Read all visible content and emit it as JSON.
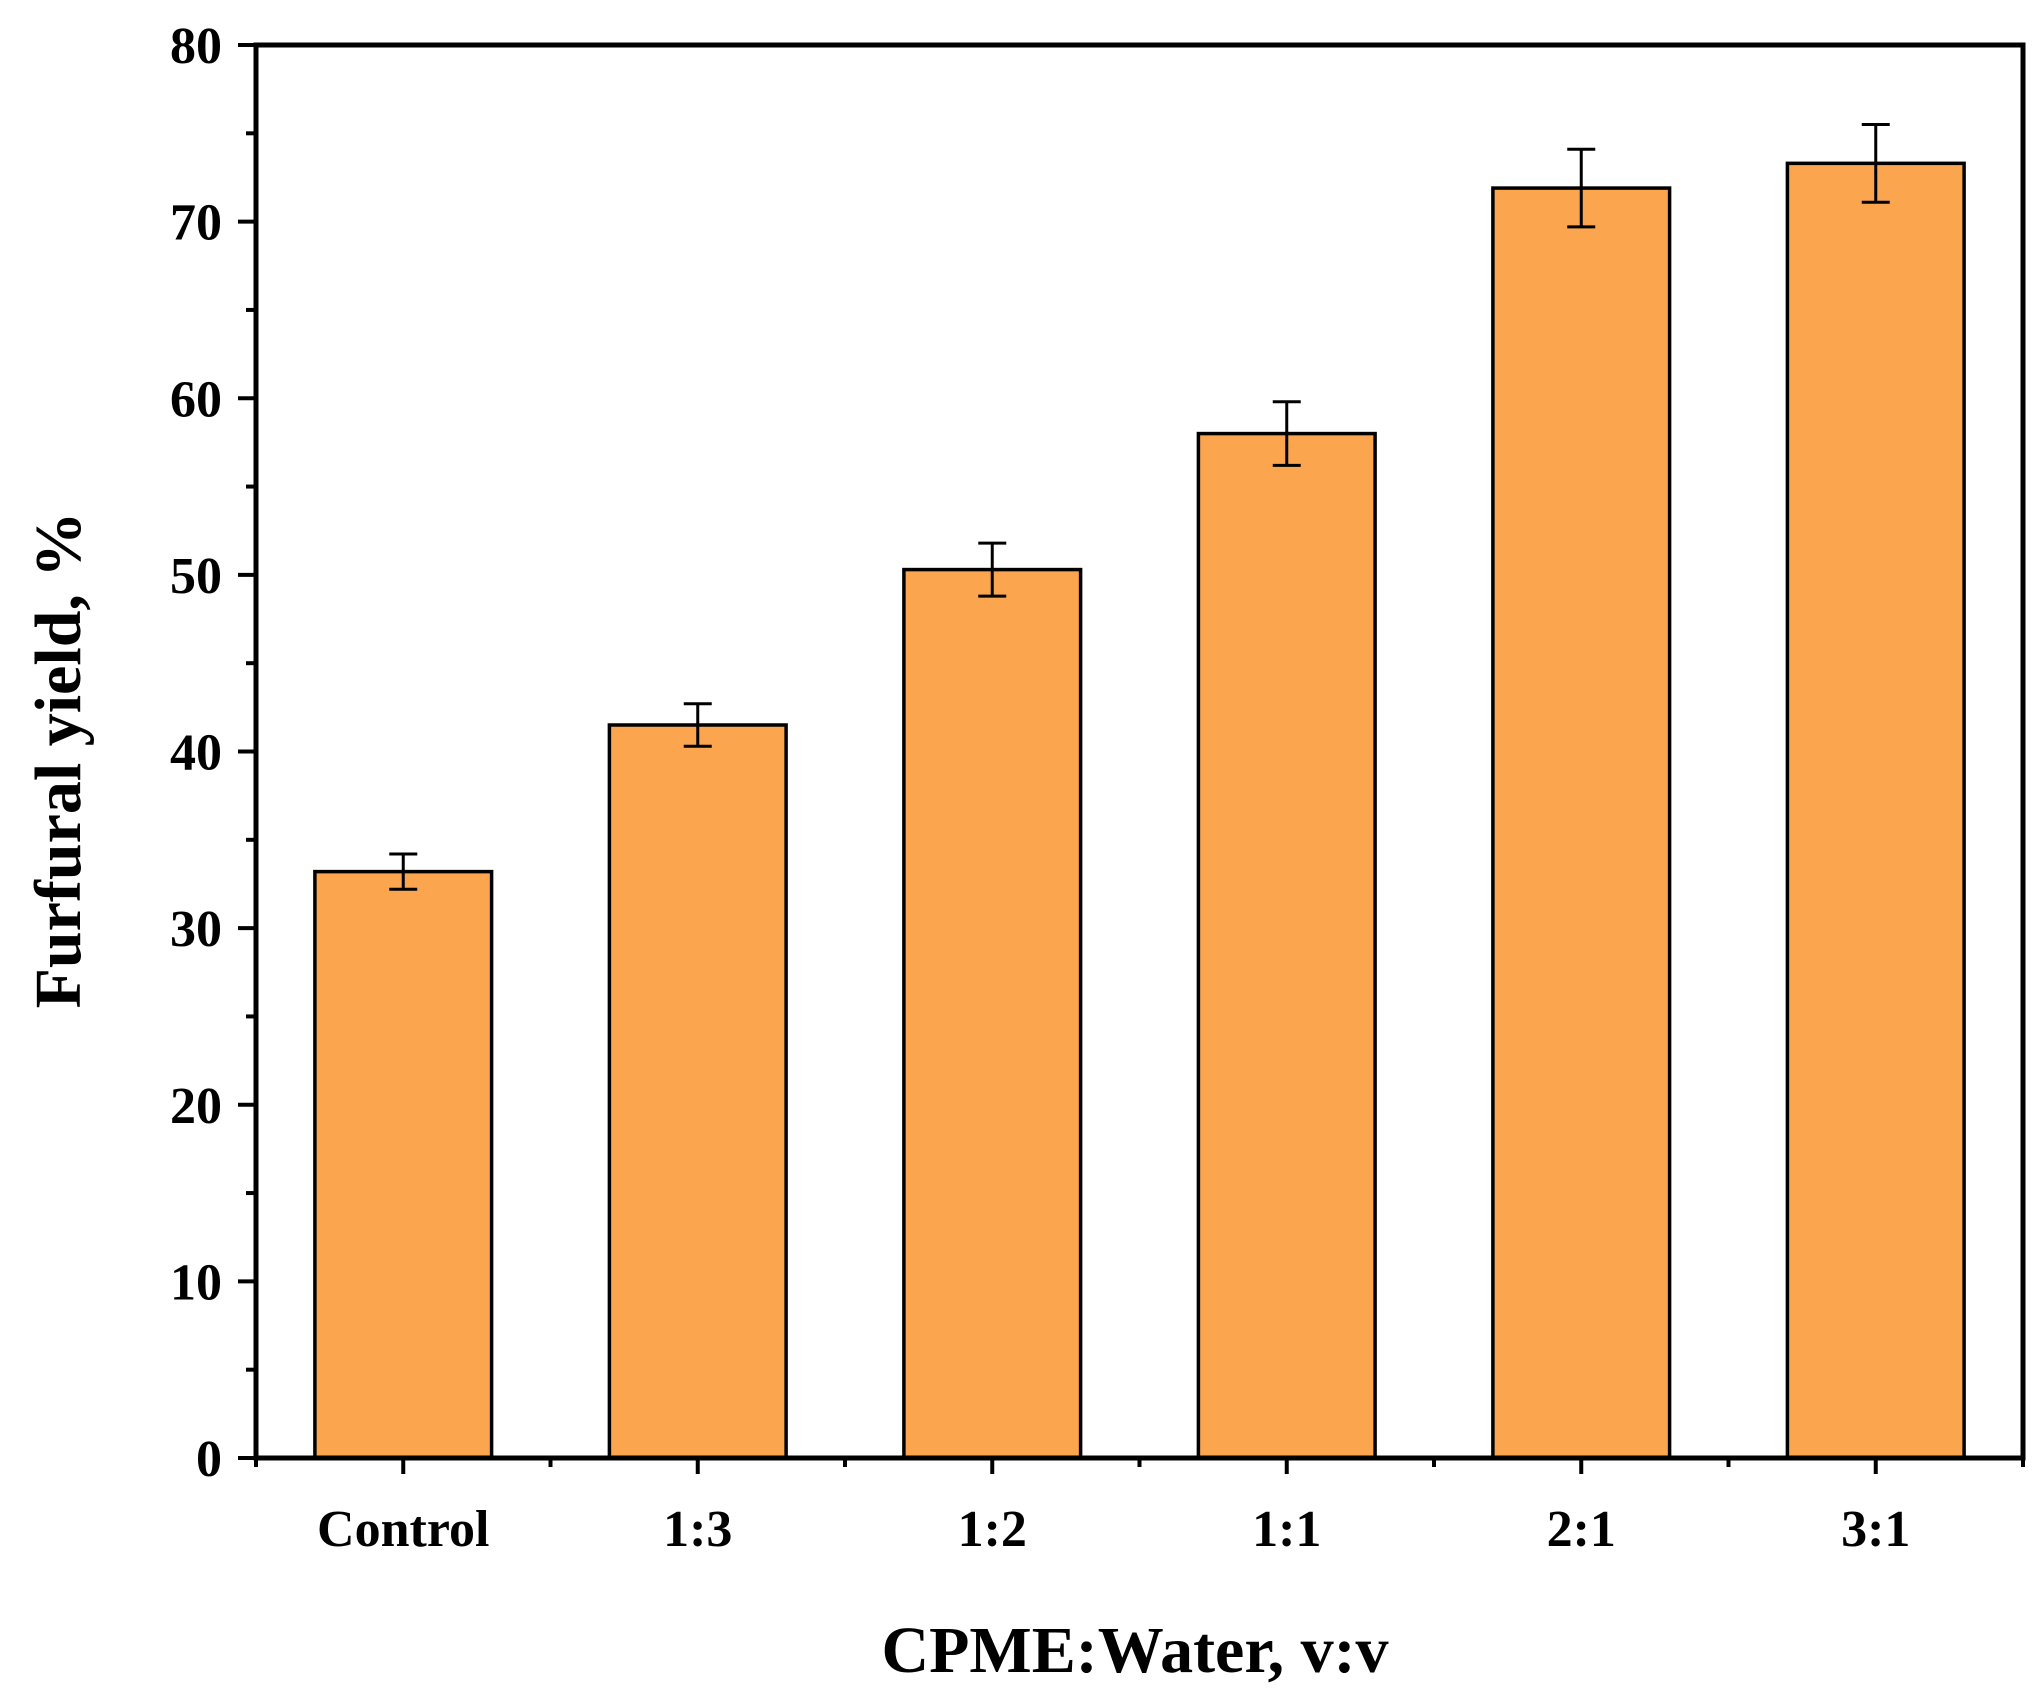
{
  "chart_data": {
    "type": "bar",
    "title": "",
    "xlabel": "CPME:Water, v:v",
    "ylabel": "Furfural yield, %",
    "categories": [
      "Control",
      "1:3",
      "1:2",
      "1:1",
      "2:1",
      "3:1"
    ],
    "values": [
      33.2,
      41.5,
      50.3,
      58.0,
      71.9,
      73.3
    ],
    "errors": [
      1.0,
      1.2,
      1.5,
      1.8,
      2.2,
      2.2
    ],
    "ylim": [
      0,
      80
    ],
    "yticks": [
      0,
      10,
      20,
      30,
      40,
      50,
      60,
      70,
      80
    ],
    "ytick_labels": [
      "0",
      "10",
      "20",
      "30",
      "40",
      "50",
      "60",
      "70",
      "80"
    ],
    "grid": false,
    "legend": "none",
    "colors": {
      "bar_fill": "#FBA54F",
      "bar_edge": "#000000",
      "axis": "#000000"
    }
  }
}
